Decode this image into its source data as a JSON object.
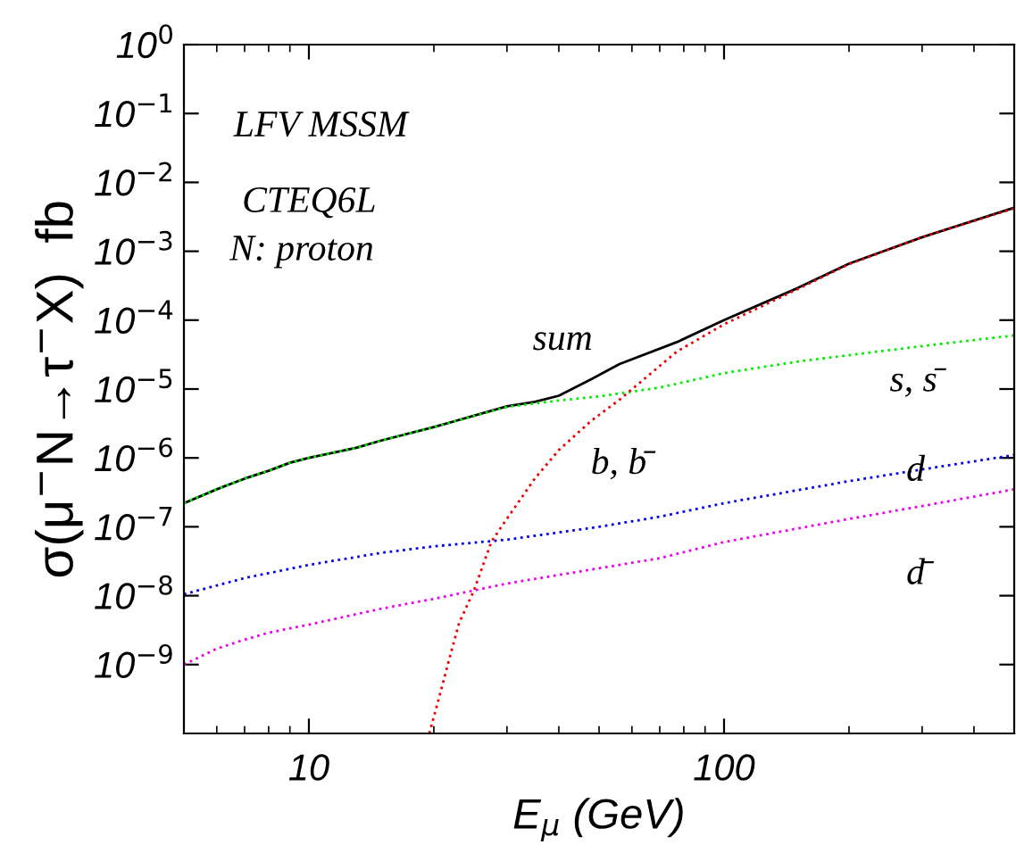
{
  "chart_data": {
    "type": "line",
    "xlabel": "E$_{μ}$ (GeV)",
    "ylabel": "σ(μ$^{−}$N→τ$^{−}$X)  fb",
    "log": "xy",
    "grid": false,
    "legend": false,
    "marker": "none",
    "xlim": [
      5,
      500
    ],
    "ylim": [
      1e-10,
      1
    ],
    "xticks": [
      10,
      100
    ],
    "yticks": [
      {
        "value": 1,
        "label": "10$^{0}$"
      },
      {
        "value": 0.1,
        "label": "10$^{−1}$"
      },
      {
        "value": 0.01,
        "label": "10$^{−2}$"
      },
      {
        "value": 0.001,
        "label": "10$^{−3}$"
      },
      {
        "value": 0.0001,
        "label": "10$^{−4}$"
      },
      {
        "value": 1e-05,
        "label": "10$^{−5}$"
      },
      {
        "value": 1e-06,
        "label": "10$^{−6}$"
      },
      {
        "value": 1e-07,
        "label": "10$^{−7}$"
      },
      {
        "value": 1e-08,
        "label": "10$^{−8}$"
      },
      {
        "value": 1e-09,
        "label": "10$^{−9}$"
      }
    ],
    "series": [
      {
        "color": "#00ee00",
        "line_style": "dotted",
        "x": [
          5,
          6,
          7,
          8,
          9,
          10,
          13,
          15,
          20,
          30,
          40,
          50,
          70,
          100,
          150,
          200,
          300,
          500
        ],
        "values": [
          2.2e-07,
          3.5e-07,
          5e-07,
          6.5e-07,
          8.5e-07,
          1e-06,
          1.4e-06,
          1.8e-06,
          2.8e-06,
          5.5e-06,
          6.8e-06,
          7.8e-06,
          1.05e-05,
          1.7e-05,
          2.5e-05,
          3.1e-05,
          4.2e-05,
          6e-05
        ]
      },
      {
        "color": "#0000ee",
        "line_style": "dotted",
        "x": [
          5,
          7,
          10,
          15,
          20,
          30,
          50,
          70,
          100,
          200,
          300,
          500
        ],
        "values": [
          1.05e-08,
          1.8e-08,
          2.8e-08,
          4.2e-08,
          5.2e-08,
          6.5e-08,
          1e-07,
          1.4e-07,
          2.2e-07,
          4.6e-07,
          6.8e-07,
          1.1e-06
        ]
      },
      {
        "color": "#ee00ee",
        "line_style": "dotted",
        "x": [
          5,
          6,
          7,
          8,
          10,
          15,
          20,
          30,
          50,
          70,
          100,
          200,
          300,
          500
        ],
        "values": [
          1e-09,
          1.7e-09,
          2.3e-09,
          2.9e-09,
          3.8e-09,
          6.5e-09,
          9e-09,
          1.5e-08,
          2.5e-08,
          3.5e-08,
          6e-08,
          1.3e-07,
          2e-07,
          3.5e-07
        ]
      },
      {
        "color": "#ee0000",
        "line_style": "dotted",
        "x": [
          19.5,
          20.5,
          22,
          23,
          25,
          27.5,
          29.4,
          35,
          40,
          48,
          56,
          77,
          100,
          150,
          200,
          300,
          500
        ],
        "values": [
          1e-10,
          3e-10,
          1.5e-09,
          4e-09,
          1.2e-08,
          6e-08,
          1.1e-07,
          5e-07,
          1.3e-06,
          3.5e-06,
          7e-06,
          3.5e-05,
          8.7e-05,
          0.00028,
          0.00065,
          0.0016,
          0.0042
        ]
      },
      {
        "color": "#000000",
        "line_style": "solid",
        "x": [
          5,
          6,
          7,
          8,
          9,
          10,
          13,
          15,
          20,
          30,
          35,
          40,
          48,
          56,
          77,
          100,
          150,
          200,
          300,
          500
        ],
        "values": [
          2.2e-07,
          3.5e-07,
          5e-07,
          6.5e-07,
          8.5e-07,
          1e-06,
          1.4e-06,
          1.8e-06,
          2.8e-06,
          5.6e-06,
          6.5e-06,
          8e-06,
          1.4e-05,
          2.3e-05,
          4.8e-05,
          0.0001,
          0.00029,
          0.00066,
          0.0016,
          0.0043
        ]
      }
    ],
    "annotations": [
      "LFV MSSM",
      "CTEQ6L",
      "N: proton",
      "sum",
      "s, s̄",
      "b, b̄",
      "d",
      "d̄"
    ]
  }
}
